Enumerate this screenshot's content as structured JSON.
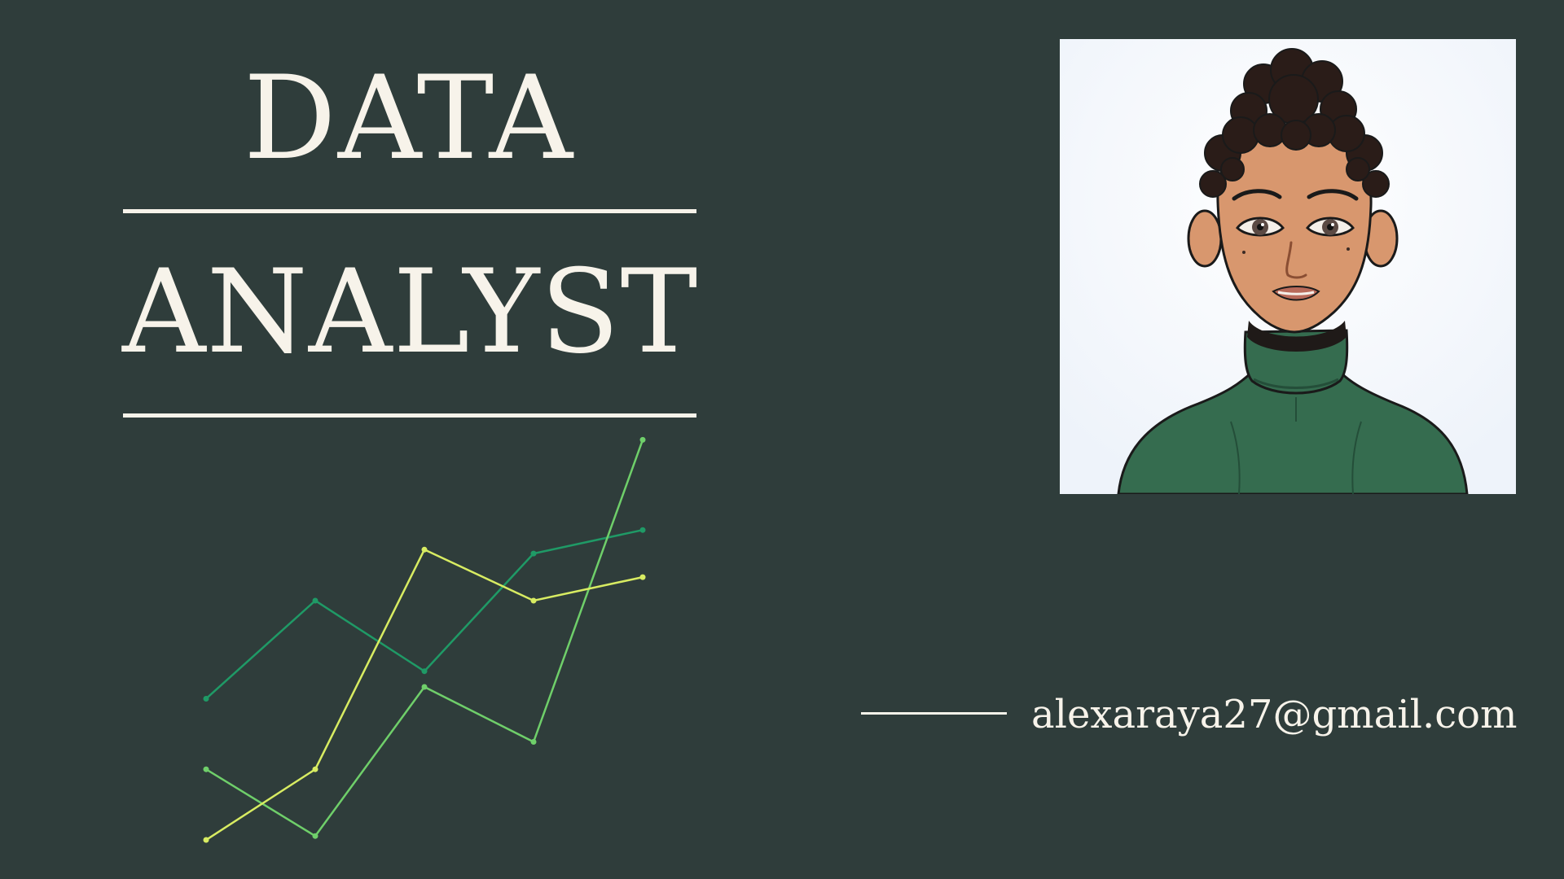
{
  "title": {
    "line1": "DATA",
    "line2": "ANALYST"
  },
  "contact": {
    "email": "alexaraya27@gmail.com"
  },
  "colors": {
    "background": "#2f3d3b",
    "text": "#f7f3ea",
    "series_dark_green": "#1f9a66",
    "series_light_green": "#6fcf6a",
    "series_yellow": "#d8ec62",
    "sweater": "#356c4f"
  },
  "portrait": {
    "subject": "illustrated-woman-avatar",
    "outfit": "green turtleneck"
  },
  "chart_data": {
    "type": "line",
    "title": "",
    "xlabel": "",
    "ylabel": "",
    "x": [
      1,
      2,
      3,
      4,
      5
    ],
    "ylim": [
      0,
      10
    ],
    "grid": false,
    "legend": "none",
    "series": [
      {
        "color": "#1f9a66",
        "values": [
          3.6,
          6.1,
          4.3,
          7.3,
          7.9
        ]
      },
      {
        "color": "#6fcf6a",
        "values": [
          1.8,
          0.1,
          3.9,
          2.5,
          10.2
        ]
      },
      {
        "color": "#d8ec62",
        "values": [
          0.0,
          1.8,
          7.4,
          6.1,
          6.7
        ]
      }
    ]
  }
}
